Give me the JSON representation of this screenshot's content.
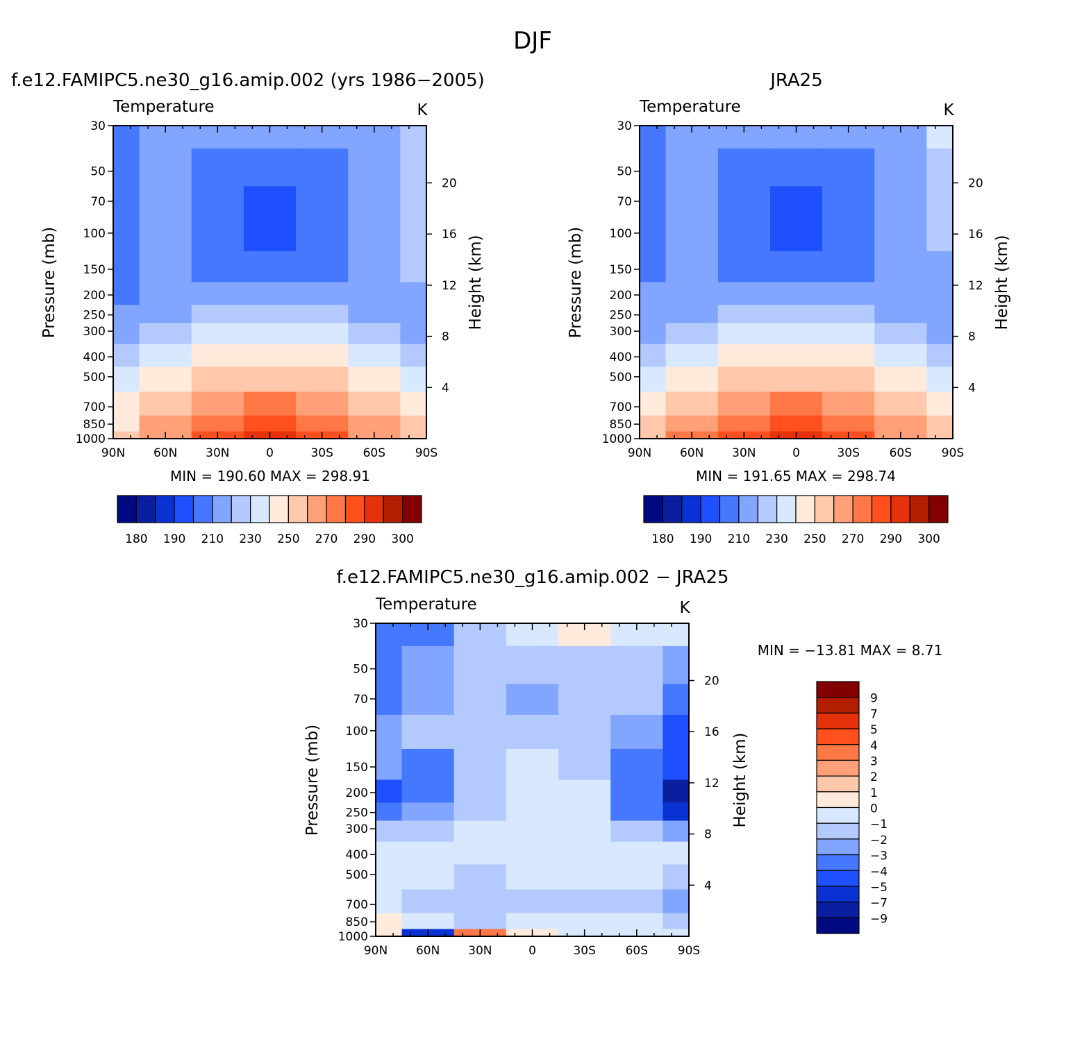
{
  "title": "DJF",
  "panels": [
    {
      "id": "model",
      "title": "f.e12.FAMIPC5.ne30_g16.amip.002 (yrs 1986-2005)",
      "left_label": "Temperature",
      "right_label": "K",
      "ylabel": "Pressure (mb)",
      "y2label": "Height (km)",
      "stats": "MIN = 190.60   MAX = 298.91",
      "colorbar_labels": [
        "180",
        "190",
        "210",
        "230",
        "250",
        "270",
        "290",
        "300"
      ]
    },
    {
      "id": "obs",
      "title": "JRA25",
      "left_label": "Temperature",
      "right_label": "K",
      "ylabel": "Pressure (mb)",
      "y2label": "Height (km)",
      "stats": "MIN = 191.65   MAX = 298.74",
      "colorbar_labels": [
        "180",
        "190",
        "210",
        "230",
        "250",
        "270",
        "290",
        "300"
      ]
    },
    {
      "id": "diff",
      "title": "f.e12.FAMIPC5.ne30_g16.amip.002 - JRA25",
      "left_label": "Temperature",
      "right_label": "K",
      "ylabel": "Pressure (mb)",
      "y2label": "Height (km)",
      "stats": "MIN = -13.81   MAX =    8.71",
      "colorbar_labels": [
        "9",
        "7",
        "5",
        "4",
        "3",
        "2",
        "1",
        "0",
        "-1",
        "-2",
        "-3",
        "-4",
        "-5",
        "-7",
        "-9"
      ]
    }
  ],
  "chart_data": [
    {
      "type": "heatmap",
      "title": "f.e12.FAMIPC5.ne30_g16.amip.002 (yrs 1986-2005)",
      "xlabel": "",
      "ylabel": "Pressure (mb)",
      "y2label": "Height (km)",
      "x_ticks": [
        "90N",
        "60N",
        "30N",
        "0",
        "30S",
        "60S",
        "90S"
      ],
      "y_ticks": [
        30,
        50,
        70,
        100,
        150,
        200,
        250,
        300,
        400,
        500,
        700,
        850,
        1000
      ],
      "y2_ticks": [
        4,
        8,
        12,
        16,
        20
      ],
      "y_scale": "log",
      "ylim": [
        1000,
        30
      ],
      "levels": [
        180,
        190,
        200,
        210,
        220,
        230,
        240,
        250,
        260,
        270,
        280,
        290,
        295,
        300
      ],
      "colors": [
        "#000a80",
        "#0a1ea0",
        "#0a32d2",
        "#1e50ff",
        "#4678ff",
        "#82a5ff",
        "#b4caff",
        "#d7e8ff",
        "#ffeadc",
        "#ffc8aa",
        "#ffa078",
        "#ff7846",
        "#ff501e",
        "#e6320a",
        "#b41e00",
        "#820000"
      ],
      "x": [
        90,
        60,
        30,
        0,
        -30,
        -60,
        -90
      ],
      "y": [
        30,
        50,
        70,
        100,
        150,
        200,
        250,
        300,
        400,
        500,
        700,
        850,
        1000
      ],
      "z": [
        [
          212,
          222,
          222,
          222,
          222,
          228,
          238
        ],
        [
          212,
          222,
          215,
          212,
          215,
          226,
          235
        ],
        [
          218,
          222,
          212,
          205,
          212,
          226,
          234
        ],
        [
          218,
          222,
          212,
          205,
          212,
          226,
          234
        ],
        [
          218,
          222,
          214,
          212,
          214,
          228,
          232
        ],
        [
          218,
          222,
          222,
          222,
          222,
          226,
          228
        ],
        [
          222,
          224,
          234,
          236,
          234,
          224,
          222
        ],
        [
          226,
          230,
          242,
          246,
          242,
          232,
          226
        ],
        [
          232,
          240,
          254,
          258,
          254,
          240,
          232
        ],
        [
          240,
          252,
          262,
          266,
          262,
          252,
          240
        ],
        [
          252,
          264,
          276,
          282,
          276,
          264,
          252
        ],
        [
          258,
          270,
          285,
          290,
          285,
          270,
          260
        ],
        [
          262,
          278,
          292,
          298,
          292,
          275,
          265
        ]
      ],
      "min": 190.6,
      "max": 298.91
    },
    {
      "type": "heatmap",
      "title": "JRA25",
      "xlabel": "",
      "ylabel": "Pressure (mb)",
      "y2label": "Height (km)",
      "x_ticks": [
        "90N",
        "60N",
        "30N",
        "0",
        "30S",
        "60S",
        "90S"
      ],
      "y_ticks": [
        30,
        50,
        70,
        100,
        150,
        200,
        250,
        300,
        400,
        500,
        700,
        850,
        1000
      ],
      "y2_ticks": [
        4,
        8,
        12,
        16,
        20
      ],
      "y_scale": "log",
      "ylim": [
        1000,
        30
      ],
      "levels": [
        180,
        190,
        200,
        210,
        220,
        230,
        240,
        250,
        260,
        270,
        280,
        290,
        295,
        300
      ],
      "colors": [
        "#000a80",
        "#0a1ea0",
        "#0a32d2",
        "#1e50ff",
        "#4678ff",
        "#82a5ff",
        "#b4caff",
        "#d7e8ff",
        "#ffeadc",
        "#ffc8aa",
        "#ffa078",
        "#ff7846",
        "#ff501e",
        "#e6320a",
        "#b41e00",
        "#820000"
      ],
      "x": [
        90,
        60,
        30,
        0,
        -30,
        -60,
        -90
      ],
      "y": [
        30,
        50,
        70,
        100,
        150,
        200,
        250,
        300,
        400,
        500,
        700,
        850,
        1000
      ],
      "z": [
        [
          216,
          222,
          222,
          222,
          222,
          228,
          240
        ],
        [
          216,
          222,
          215,
          212,
          215,
          226,
          236
        ],
        [
          216,
          222,
          212,
          205,
          212,
          226,
          235
        ],
        [
          216,
          222,
          212,
          205,
          212,
          226,
          232
        ],
        [
          218,
          222,
          214,
          212,
          214,
          226,
          228
        ],
        [
          222,
          222,
          222,
          222,
          222,
          224,
          226
        ],
        [
          224,
          226,
          234,
          236,
          234,
          226,
          222
        ],
        [
          228,
          232,
          242,
          246,
          242,
          232,
          226
        ],
        [
          234,
          242,
          254,
          258,
          254,
          242,
          236
        ],
        [
          242,
          254,
          262,
          266,
          262,
          254,
          244
        ],
        [
          254,
          266,
          276,
          282,
          276,
          266,
          254
        ],
        [
          262,
          274,
          285,
          290,
          285,
          274,
          264
        ],
        [
          266,
          280,
          292,
          298,
          292,
          278,
          268
        ]
      ],
      "min": 191.65,
      "max": 298.74
    },
    {
      "type": "heatmap",
      "title": "f.e12.FAMIPC5.ne30_g16.amip.002 - JRA25",
      "xlabel": "",
      "ylabel": "Pressure (mb)",
      "y2label": "Height (km)",
      "x_ticks": [
        "90N",
        "60N",
        "30N",
        "0",
        "30S",
        "60S",
        "90S"
      ],
      "y_ticks": [
        30,
        50,
        70,
        100,
        150,
        200,
        250,
        300,
        400,
        500,
        700,
        850,
        1000
      ],
      "y2_ticks": [
        4,
        8,
        12,
        16,
        20
      ],
      "y_scale": "log",
      "ylim": [
        1000,
        30
      ],
      "levels": [
        -9,
        -7,
        -5,
        -4,
        -3,
        -2,
        -1,
        0,
        1,
        2,
        3,
        4,
        5,
        7,
        9
      ],
      "colors": [
        "#000a80",
        "#0a1ea0",
        "#0a32d2",
        "#1e50ff",
        "#4678ff",
        "#82a5ff",
        "#b4caff",
        "#d7e8ff",
        "#ffeadc",
        "#ffc8aa",
        "#ffa078",
        "#ff7846",
        "#ff501e",
        "#e6320a",
        "#b41e00",
        "#820000"
      ],
      "x": [
        90,
        60,
        30,
        0,
        -30,
        -60,
        -90
      ],
      "y": [
        30,
        50,
        70,
        100,
        150,
        200,
        250,
        300,
        400,
        500,
        700,
        850,
        1000
      ],
      "z": [
        [
          -3.5,
          -3.5,
          -1.5,
          -0.5,
          0.5,
          -0.5,
          -0.5
        ],
        [
          -3.5,
          -2.5,
          -1.5,
          -1.5,
          -1.5,
          -1.5,
          -2.5
        ],
        [
          -3.5,
          -2.5,
          -1.5,
          -2.5,
          -1.5,
          -1.5,
          -3.5
        ],
        [
          -2.5,
          -1.5,
          -1.5,
          -1.5,
          -1.5,
          -2.5,
          -4.5
        ],
        [
          -2.5,
          -3.5,
          -1.5,
          -0.5,
          -1.5,
          -3.5,
          -4.5
        ],
        [
          -4.5,
          -3.5,
          -1.5,
          -0.5,
          -0.5,
          -3.5,
          -8
        ],
        [
          -3.5,
          -2.5,
          -1.5,
          -0.5,
          -0.5,
          -3.5,
          -6
        ],
        [
          -1.5,
          -1.5,
          -0.5,
          -0.5,
          -0.5,
          -1.5,
          -2.5
        ],
        [
          -0.5,
          -0.5,
          -0.5,
          -0.5,
          -0.5,
          -0.5,
          -0.5
        ],
        [
          -0.5,
          -0.5,
          -1.5,
          -0.5,
          -0.5,
          -0.5,
          -1.5
        ],
        [
          -0.5,
          -1.5,
          -1.5,
          -1.5,
          -1.5,
          -1.5,
          -2.5
        ],
        [
          0.5,
          -0.5,
          -1.5,
          -0.5,
          -0.5,
          -0.5,
          -1.5
        ],
        [
          0.5,
          -6,
          3.5,
          0.5,
          -0.5,
          -0.5,
          -0.5
        ]
      ],
      "min": -13.81,
      "max": 8.71
    }
  ]
}
